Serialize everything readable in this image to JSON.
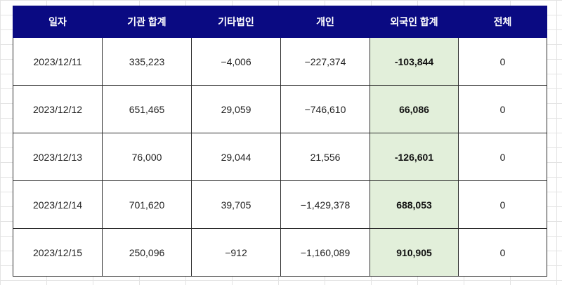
{
  "table": {
    "headers": [
      "일자",
      "기관 합계",
      "기타법인",
      "개인",
      "외국인 합계",
      "전체"
    ],
    "rows": [
      [
        "2023/12/11",
        "335,223",
        "−4,006",
        "−227,374",
        "-103,844",
        "0"
      ],
      [
        "2023/12/12",
        "651,465",
        "29,059",
        "−746,610",
        "66,086",
        "0"
      ],
      [
        "2023/12/13",
        "76,000",
        "29,044",
        "21,556",
        "-126,601",
        "0"
      ],
      [
        "2023/12/14",
        "701,620",
        "39,705",
        "−1,429,378",
        "688,053",
        "0"
      ],
      [
        "2023/12/15",
        "250,096",
        "−912",
        "−1,160,089",
        "910,905",
        "0"
      ]
    ]
  },
  "colors": {
    "header_bg": "#0a0a82",
    "header_text": "#ffffff",
    "highlight_bg": "#e2efda",
    "border": "#2b2b2b",
    "gridline": "#e3e3e3"
  }
}
